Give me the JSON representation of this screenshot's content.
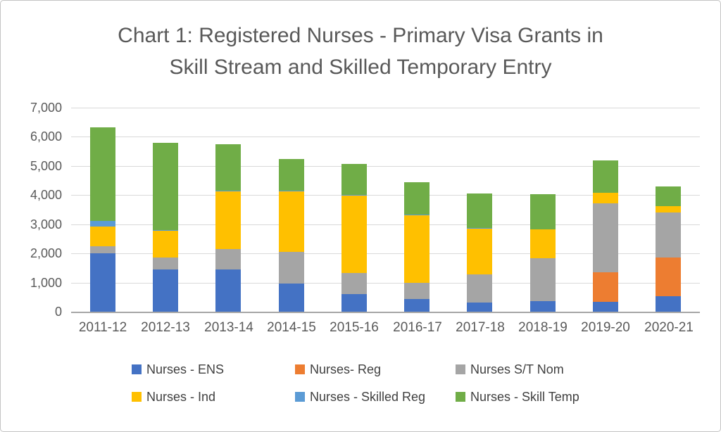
{
  "chart_data": {
    "type": "bar",
    "stacked": true,
    "title": "Chart 1: Registered Nurses - Primary Visa Grants in Skill Stream and Skilled Temporary Entry",
    "title_lines": [
      "Chart 1: Registered Nurses - Primary Visa Grants in",
      "Skill Stream and Skilled Temporary Entry"
    ],
    "categories": [
      "2011-12",
      "2012-13",
      "2013-14",
      "2014-15",
      "2015-16",
      "2016-17",
      "2017-18",
      "2018-19",
      "2019-20",
      "2020-21"
    ],
    "series": [
      {
        "name": "Nurses - ENS",
        "color": "#4472C4",
        "values": [
          2000,
          1460,
          1440,
          970,
          600,
          440,
          310,
          360,
          340,
          540
        ]
      },
      {
        "name": "Nurses- Reg",
        "color": "#ED7D31",
        "values": [
          0,
          0,
          0,
          0,
          0,
          0,
          0,
          0,
          1000,
          1320
        ]
      },
      {
        "name": "Nurses S/T Nom",
        "color": "#A5A5A5",
        "values": [
          250,
          400,
          720,
          1090,
          720,
          545,
          970,
          1480,
          2380,
          1540
        ]
      },
      {
        "name": "Nurses - Ind",
        "color": "#FFC000",
        "values": [
          680,
          920,
          1960,
          2060,
          2660,
          2315,
          1575,
          980,
          360,
          220
        ]
      },
      {
        "name": "Nurses - Skilled Reg",
        "color": "#5B9BD5",
        "values": [
          190,
          30,
          30,
          30,
          30,
          30,
          25,
          0,
          0,
          0
        ]
      },
      {
        "name": "Nurses - Skill Temp",
        "color": "#70AD47",
        "values": [
          3210,
          2980,
          1600,
          1080,
          1060,
          1120,
          1170,
          1210,
          1120,
          680
        ]
      }
    ],
    "totals": [
      6330,
      5790,
      5750,
      5230,
      5070,
      4450,
      4050,
      4030,
      5200,
      4300
    ],
    "xlabel": "",
    "ylabel": "",
    "ylim": [
      0,
      7000
    ],
    "ytick_step": 1000,
    "yticks": [
      "0",
      "1,000",
      "2,000",
      "3,000",
      "4,000",
      "5,000",
      "6,000",
      "7,000"
    ],
    "grid": true,
    "legend_position": "bottom",
    "legend_rows": [
      [
        0,
        1,
        2
      ],
      [
        3,
        4,
        5
      ]
    ]
  }
}
